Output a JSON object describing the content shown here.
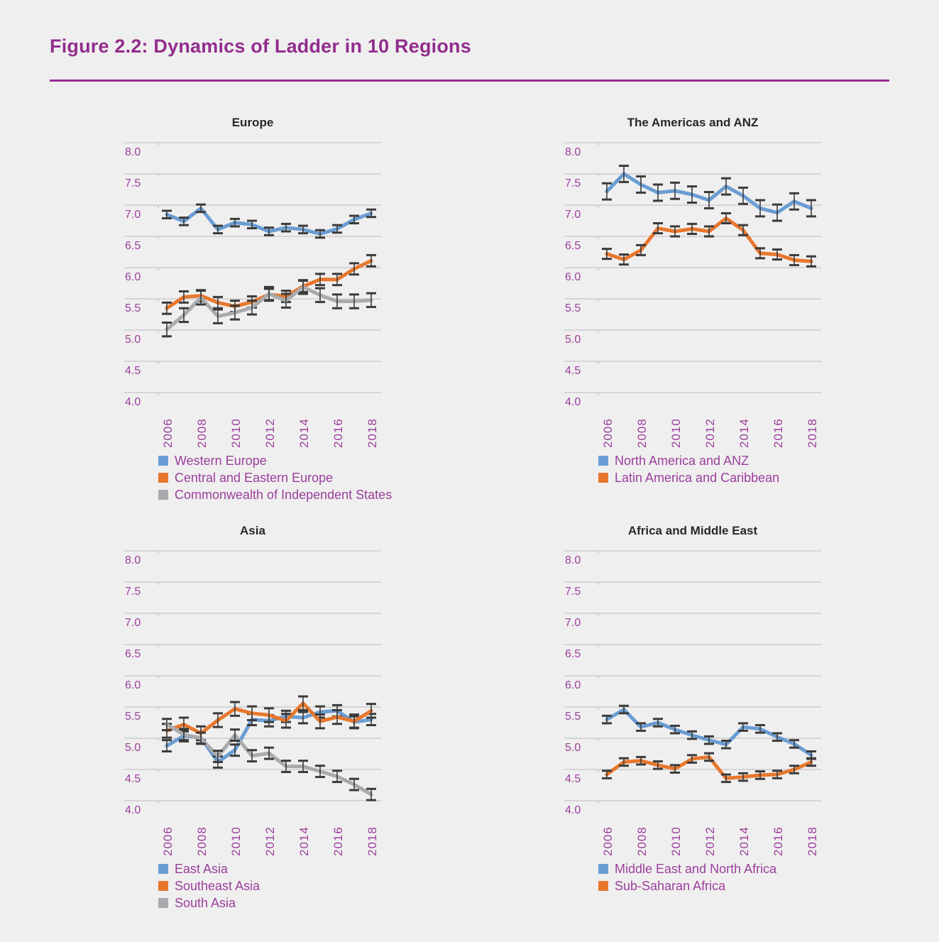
{
  "page": {
    "figure_title": "Figure 2.2: Dynamics of Ladder in 10 Regions",
    "colors": {
      "background": "#f0efef",
      "figure_title": "#922d8e",
      "title_rule": "#922d8e",
      "chart_title": "#2b2728",
      "axis_label": "#9a3f9c",
      "legend_text": "#9a3f9c",
      "gridline": "#cdcccd",
      "tick": "#c4c3c4",
      "error_bar": "#3b3b3b"
    }
  },
  "chart_data": [
    {
      "type": "line",
      "title": "Europe",
      "x": [
        2006,
        2007,
        2008,
        2009,
        2010,
        2011,
        2012,
        2013,
        2014,
        2015,
        2016,
        2017,
        2018
      ],
      "x_tick_labels": [
        "2006",
        "2008",
        "2010",
        "2012",
        "2014",
        "2016",
        "2018"
      ],
      "ylim": [
        4.0,
        8.0
      ],
      "y_tick_labels": [
        "8.0",
        "7.5",
        "7.0",
        "6.5",
        "6.0",
        "5.5",
        "5.0",
        "4.5",
        "4.0"
      ],
      "grid": true,
      "error_bars": true,
      "legend_position": "bottom-left",
      "series": [
        {
          "name": "Western Europe",
          "color": "#6a9dd3",
          "err": 0.06,
          "values": [
            6.85,
            6.74,
            6.95,
            6.61,
            6.72,
            6.69,
            6.58,
            6.64,
            6.61,
            6.54,
            6.62,
            6.77,
            6.87
          ]
        },
        {
          "name": "Central and Eastern Europe",
          "color": "#e8772e",
          "err": 0.09,
          "values": [
            5.35,
            5.53,
            5.55,
            5.44,
            5.38,
            5.45,
            5.57,
            5.54,
            5.7,
            5.81,
            5.81,
            5.98,
            6.11
          ]
        },
        {
          "name": "Commonwealth of Independent States",
          "color": "#a9aaad",
          "err": 0.11,
          "values": [
            5.01,
            5.24,
            5.52,
            5.22,
            5.28,
            5.36,
            5.58,
            5.47,
            5.69,
            5.56,
            5.46,
            5.46,
            5.48
          ]
        }
      ]
    },
    {
      "type": "line",
      "title": "The Americas and ANZ",
      "x": [
        2006,
        2007,
        2008,
        2009,
        2010,
        2011,
        2012,
        2013,
        2014,
        2015,
        2016,
        2017,
        2018
      ],
      "x_tick_labels": [
        "2006",
        "2008",
        "2010",
        "2012",
        "2014",
        "2016",
        "2018"
      ],
      "ylim": [
        4.0,
        8.0
      ],
      "y_tick_labels": [
        "8.0",
        "7.5",
        "7.0",
        "6.5",
        "6.0",
        "5.5",
        "5.0",
        "4.5",
        "4.0"
      ],
      "grid": true,
      "error_bars": true,
      "legend_position": "bottom-left",
      "series": [
        {
          "name": "North America and ANZ",
          "color": "#6a9dd3",
          "err": 0.13,
          "values": [
            7.22,
            7.5,
            7.33,
            7.2,
            7.23,
            7.17,
            7.08,
            7.3,
            7.15,
            6.95,
            6.88,
            7.06,
            6.95
          ]
        },
        {
          "name": "Latin America and Caribbean",
          "color": "#e8772e",
          "err": 0.08,
          "values": [
            6.22,
            6.13,
            6.28,
            6.63,
            6.58,
            6.62,
            6.58,
            6.79,
            6.6,
            6.23,
            6.21,
            6.12,
            6.1
          ]
        }
      ]
    },
    {
      "type": "line",
      "title": "Asia",
      "x": [
        2006,
        2007,
        2008,
        2009,
        2010,
        2011,
        2012,
        2013,
        2014,
        2015,
        2016,
        2017,
        2018
      ],
      "x_tick_labels": [
        "2006",
        "2008",
        "2010",
        "2012",
        "2014",
        "2016",
        "2018"
      ],
      "ylim": [
        4.0,
        8.0
      ],
      "y_tick_labels": [
        "8.0",
        "7.5",
        "7.0",
        "6.5",
        "6.0",
        "5.5",
        "5.0",
        "4.5",
        "4.0"
      ],
      "grid": true,
      "error_bars": true,
      "legend_position": "bottom-left",
      "series": [
        {
          "name": "East Asia",
          "color": "#6a9dd3",
          "err": 0.09,
          "values": [
            4.88,
            5.04,
            5.01,
            4.62,
            4.81,
            5.3,
            5.28,
            5.35,
            5.33,
            5.42,
            5.44,
            5.26,
            5.3
          ]
        },
        {
          "name": "Southeast Asia",
          "color": "#e8772e",
          "err": 0.11,
          "values": [
            5.12,
            5.22,
            5.08,
            5.29,
            5.47,
            5.4,
            5.37,
            5.28,
            5.56,
            5.27,
            5.34,
            5.27,
            5.44
          ]
        },
        {
          "name": "South Asia",
          "color": "#a9aaad",
          "err": 0.09,
          "values": [
            5.22,
            5.06,
            5.0,
            4.71,
            5.05,
            4.72,
            4.76,
            4.55,
            4.55,
            4.47,
            4.39,
            4.26,
            4.1
          ]
        }
      ]
    },
    {
      "type": "line",
      "title": "Africa and Middle East",
      "x": [
        2006,
        2007,
        2008,
        2009,
        2010,
        2011,
        2012,
        2013,
        2014,
        2015,
        2016,
        2017,
        2018
      ],
      "x_tick_labels": [
        "2006",
        "2008",
        "2010",
        "2012",
        "2014",
        "2016",
        "2018"
      ],
      "ylim": [
        4.0,
        8.0
      ],
      "y_tick_labels": [
        "8.0",
        "7.5",
        "7.0",
        "6.5",
        "6.0",
        "5.5",
        "5.0",
        "4.5",
        "4.0"
      ],
      "grid": true,
      "error_bars": true,
      "legend_position": "bottom-left",
      "series": [
        {
          "name": "Middle East and North Africa",
          "color": "#6a9dd3",
          "err": 0.06,
          "values": [
            5.3,
            5.46,
            5.18,
            5.25,
            5.14,
            5.05,
            4.97,
            4.9,
            5.18,
            5.15,
            5.02,
            4.91,
            4.73
          ]
        },
        {
          "name": "Sub-Saharan Africa",
          "color": "#e8772e",
          "err": 0.06,
          "values": [
            4.42,
            4.62,
            4.64,
            4.57,
            4.51,
            4.67,
            4.7,
            4.36,
            4.38,
            4.41,
            4.42,
            4.5,
            4.62
          ]
        }
      ]
    }
  ]
}
